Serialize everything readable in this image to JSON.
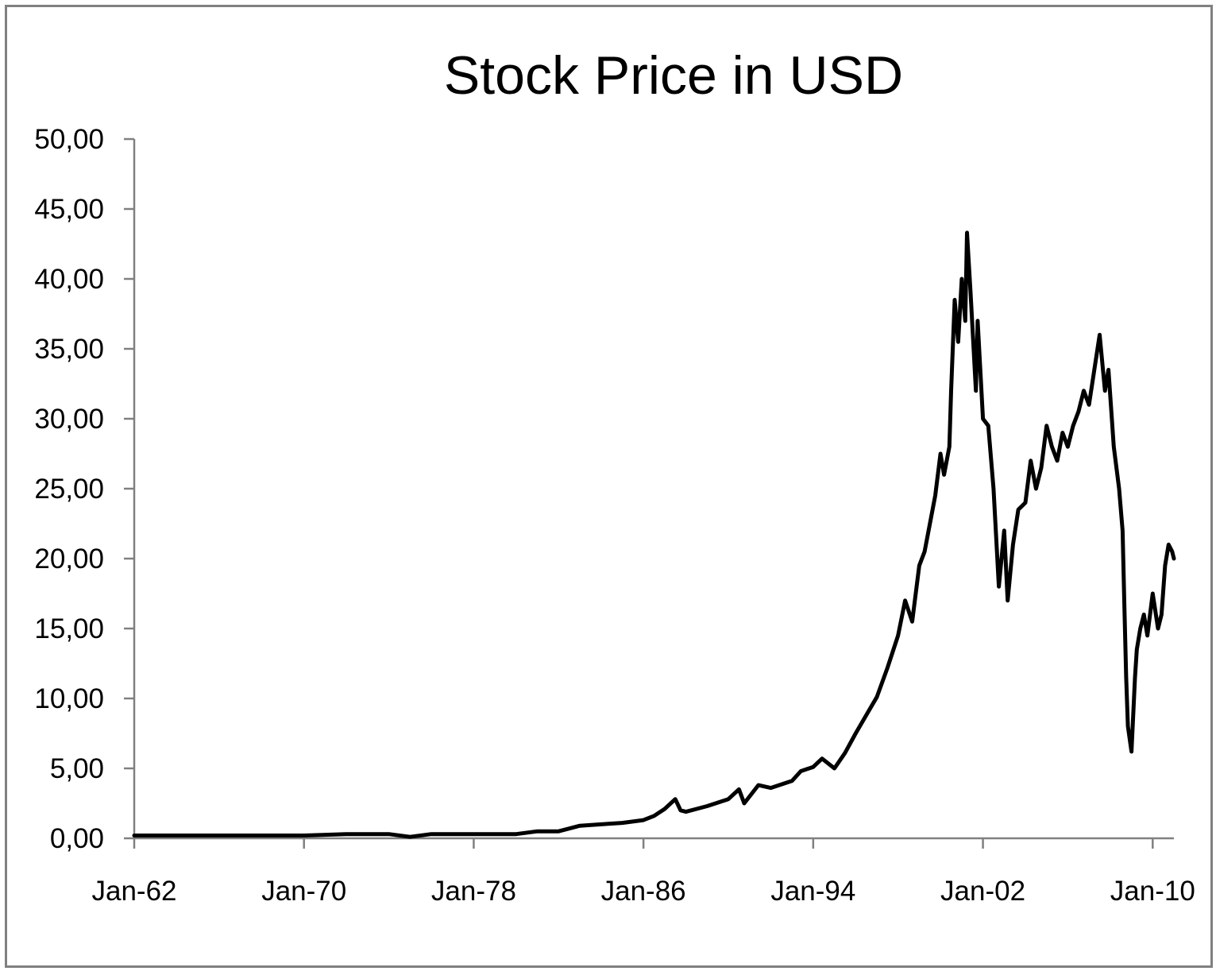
{
  "colors": {
    "background": "#ffffff",
    "frame": "#808080",
    "axis": "#808080",
    "line": "#000000",
    "text": "#000000"
  },
  "chart_data": {
    "type": "line",
    "title": "Stock Price in USD",
    "xlabel": "",
    "ylabel": "",
    "grid": false,
    "legend": "none",
    "x_type": "date",
    "xlim": [
      "1962-01",
      "2011-01"
    ],
    "ylim": [
      0,
      50
    ],
    "x_tick_labels": [
      "Jan-62",
      "Jan-70",
      "Jan-78",
      "Jan-86",
      "Jan-94",
      "Jan-02",
      "Jan-10"
    ],
    "x_ticks": [
      "1962-01",
      "1970-01",
      "1978-01",
      "1986-01",
      "1994-01",
      "2002-01",
      "2010-01"
    ],
    "y_tick_labels": [
      "0,00",
      "5,00",
      "10,00",
      "15,00",
      "20,00",
      "25,00",
      "30,00",
      "35,00",
      "40,00",
      "45,00",
      "50,00"
    ],
    "y_ticks": [
      0,
      5,
      10,
      15,
      20,
      25,
      30,
      35,
      40,
      45,
      50
    ],
    "series": [
      {
        "x": [
          "1962-01",
          "1965-01",
          "1970-01",
          "1972-01",
          "1973-01",
          "1974-01",
          "1975-01",
          "1976-01",
          "1978-01",
          "1980-01",
          "1981-01",
          "1982-01",
          "1983-01",
          "1984-01",
          "1985-01",
          "1986-01",
          "1986-07",
          "1987-01",
          "1987-07",
          "1987-10",
          "1988-01",
          "1989-01",
          "1990-01",
          "1990-07",
          "1990-10",
          "1991-06",
          "1992-01",
          "1993-01",
          "1993-06",
          "1994-01",
          "1994-06",
          "1995-01",
          "1995-07",
          "1996-01",
          "1996-07",
          "1997-01",
          "1997-07",
          "1998-01",
          "1998-05",
          "1998-09",
          "1999-01",
          "1999-04",
          "1999-07",
          "1999-10",
          "2000-01",
          "2000-03",
          "2000-06",
          "2000-07",
          "2000-09",
          "2000-11",
          "2001-01",
          "2001-03",
          "2001-04",
          "2001-06",
          "2001-09",
          "2001-10",
          "2002-01",
          "2002-04",
          "2002-07",
          "2002-10",
          "2003-01",
          "2003-03",
          "2003-06",
          "2003-09",
          "2004-01",
          "2004-04",
          "2004-07",
          "2004-10",
          "2005-01",
          "2005-04",
          "2005-07",
          "2005-10",
          "2006-01",
          "2006-04",
          "2006-07",
          "2006-10",
          "2007-01",
          "2007-04",
          "2007-07",
          "2007-10",
          "2007-12",
          "2008-03",
          "2008-06",
          "2008-08",
          "2008-09",
          "2008-10",
          "2008-11",
          "2009-01",
          "2009-03",
          "2009-04",
          "2009-06",
          "2009-08",
          "2009-10",
          "2010-01",
          "2010-04",
          "2010-06",
          "2010-08",
          "2010-10",
          "2010-12",
          "2011-01"
        ],
        "values": [
          0.2,
          0.2,
          0.2,
          0.3,
          0.3,
          0.3,
          0.1,
          0.3,
          0.3,
          0.3,
          0.5,
          0.5,
          0.9,
          1.0,
          1.1,
          1.3,
          1.6,
          2.1,
          2.8,
          2.0,
          1.9,
          2.3,
          2.8,
          3.5,
          2.5,
          3.8,
          3.6,
          4.1,
          4.8,
          5.1,
          5.7,
          5.0,
          6.1,
          7.5,
          8.8,
          10.1,
          12.2,
          14.5,
          17.0,
          15.5,
          19.5,
          20.5,
          22.5,
          24.5,
          27.5,
          26.0,
          28.0,
          32.0,
          38.5,
          35.5,
          40.0,
          37.0,
          43.3,
          39.0,
          32.0,
          37.0,
          30.0,
          29.5,
          25.0,
          18.0,
          22.0,
          17.0,
          21.0,
          23.5,
          24.0,
          27.0,
          25.0,
          26.5,
          29.5,
          28.0,
          27.0,
          29.0,
          28.0,
          29.5,
          30.5,
          32.0,
          31.0,
          33.5,
          36.0,
          32.0,
          33.5,
          28.0,
          25.0,
          22.0,
          16.5,
          11.5,
          8.0,
          6.2,
          11.5,
          13.5,
          15.0,
          16.0,
          14.5,
          17.5,
          15.0,
          16.0,
          19.5,
          21.0,
          20.5,
          20.0
        ]
      }
    ]
  }
}
